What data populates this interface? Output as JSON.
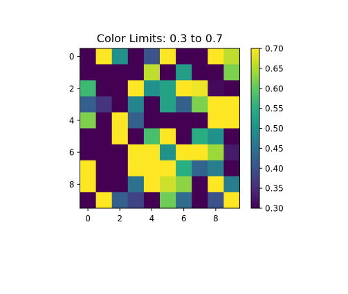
{
  "chart_data": {
    "type": "heatmap",
    "title": "Color Limits: 0.3 to 0.7",
    "xlabel": "",
    "ylabel": "",
    "colormap": "viridis",
    "vmin": 0.3,
    "vmax": 0.7,
    "x_ticks": [
      0,
      2,
      4,
      6,
      8
    ],
    "y_ticks": [
      0,
      2,
      4,
      6,
      8
    ],
    "x_tick_labels": [
      "0",
      "2",
      "4",
      "6",
      "8"
    ],
    "y_tick_labels": [
      "0",
      "2",
      "4",
      "6",
      "8"
    ],
    "colorbar_ticks": [
      0.3,
      0.35,
      0.4,
      0.45,
      0.5,
      0.55,
      0.6,
      0.65,
      0.7
    ],
    "colorbar_tick_labels": [
      "0.30",
      "0.35",
      "0.40",
      "0.45",
      "0.50",
      "0.55",
      "0.60",
      "0.65",
      "0.70"
    ],
    "values": [
      [
        0.3,
        0.7,
        0.5,
        0.3,
        0.4,
        0.7,
        0.3,
        0.3,
        0.7,
        0.66
      ],
      [
        0.3,
        0.3,
        0.3,
        0.3,
        0.66,
        0.3,
        0.52,
        0.3,
        0.3,
        0.62
      ],
      [
        0.57,
        0.3,
        0.3,
        0.7,
        0.5,
        0.53,
        0.7,
        0.69,
        0.31,
        0.3
      ],
      [
        0.42,
        0.36,
        0.3,
        0.48,
        0.3,
        0.53,
        0.42,
        0.62,
        0.7,
        0.7
      ],
      [
        0.62,
        0.3,
        0.7,
        0.42,
        0.3,
        0.3,
        0.3,
        0.3,
        0.7,
        0.7
      ],
      [
        0.3,
        0.3,
        0.7,
        0.3,
        0.58,
        0.7,
        0.3,
        0.55,
        0.5,
        0.3
      ],
      [
        0.3,
        0.3,
        0.3,
        0.7,
        0.7,
        0.5,
        0.7,
        0.7,
        0.64,
        0.33
      ],
      [
        0.7,
        0.3,
        0.3,
        0.7,
        0.7,
        0.7,
        0.55,
        0.43,
        0.47,
        0.3
      ],
      [
        0.7,
        0.3,
        0.3,
        0.45,
        0.7,
        0.67,
        0.63,
        0.3,
        0.7,
        0.47
      ],
      [
        0.3,
        0.7,
        0.42,
        0.38,
        0.3,
        0.61,
        0.44,
        0.3,
        0.4,
        0.7
      ]
    ]
  }
}
